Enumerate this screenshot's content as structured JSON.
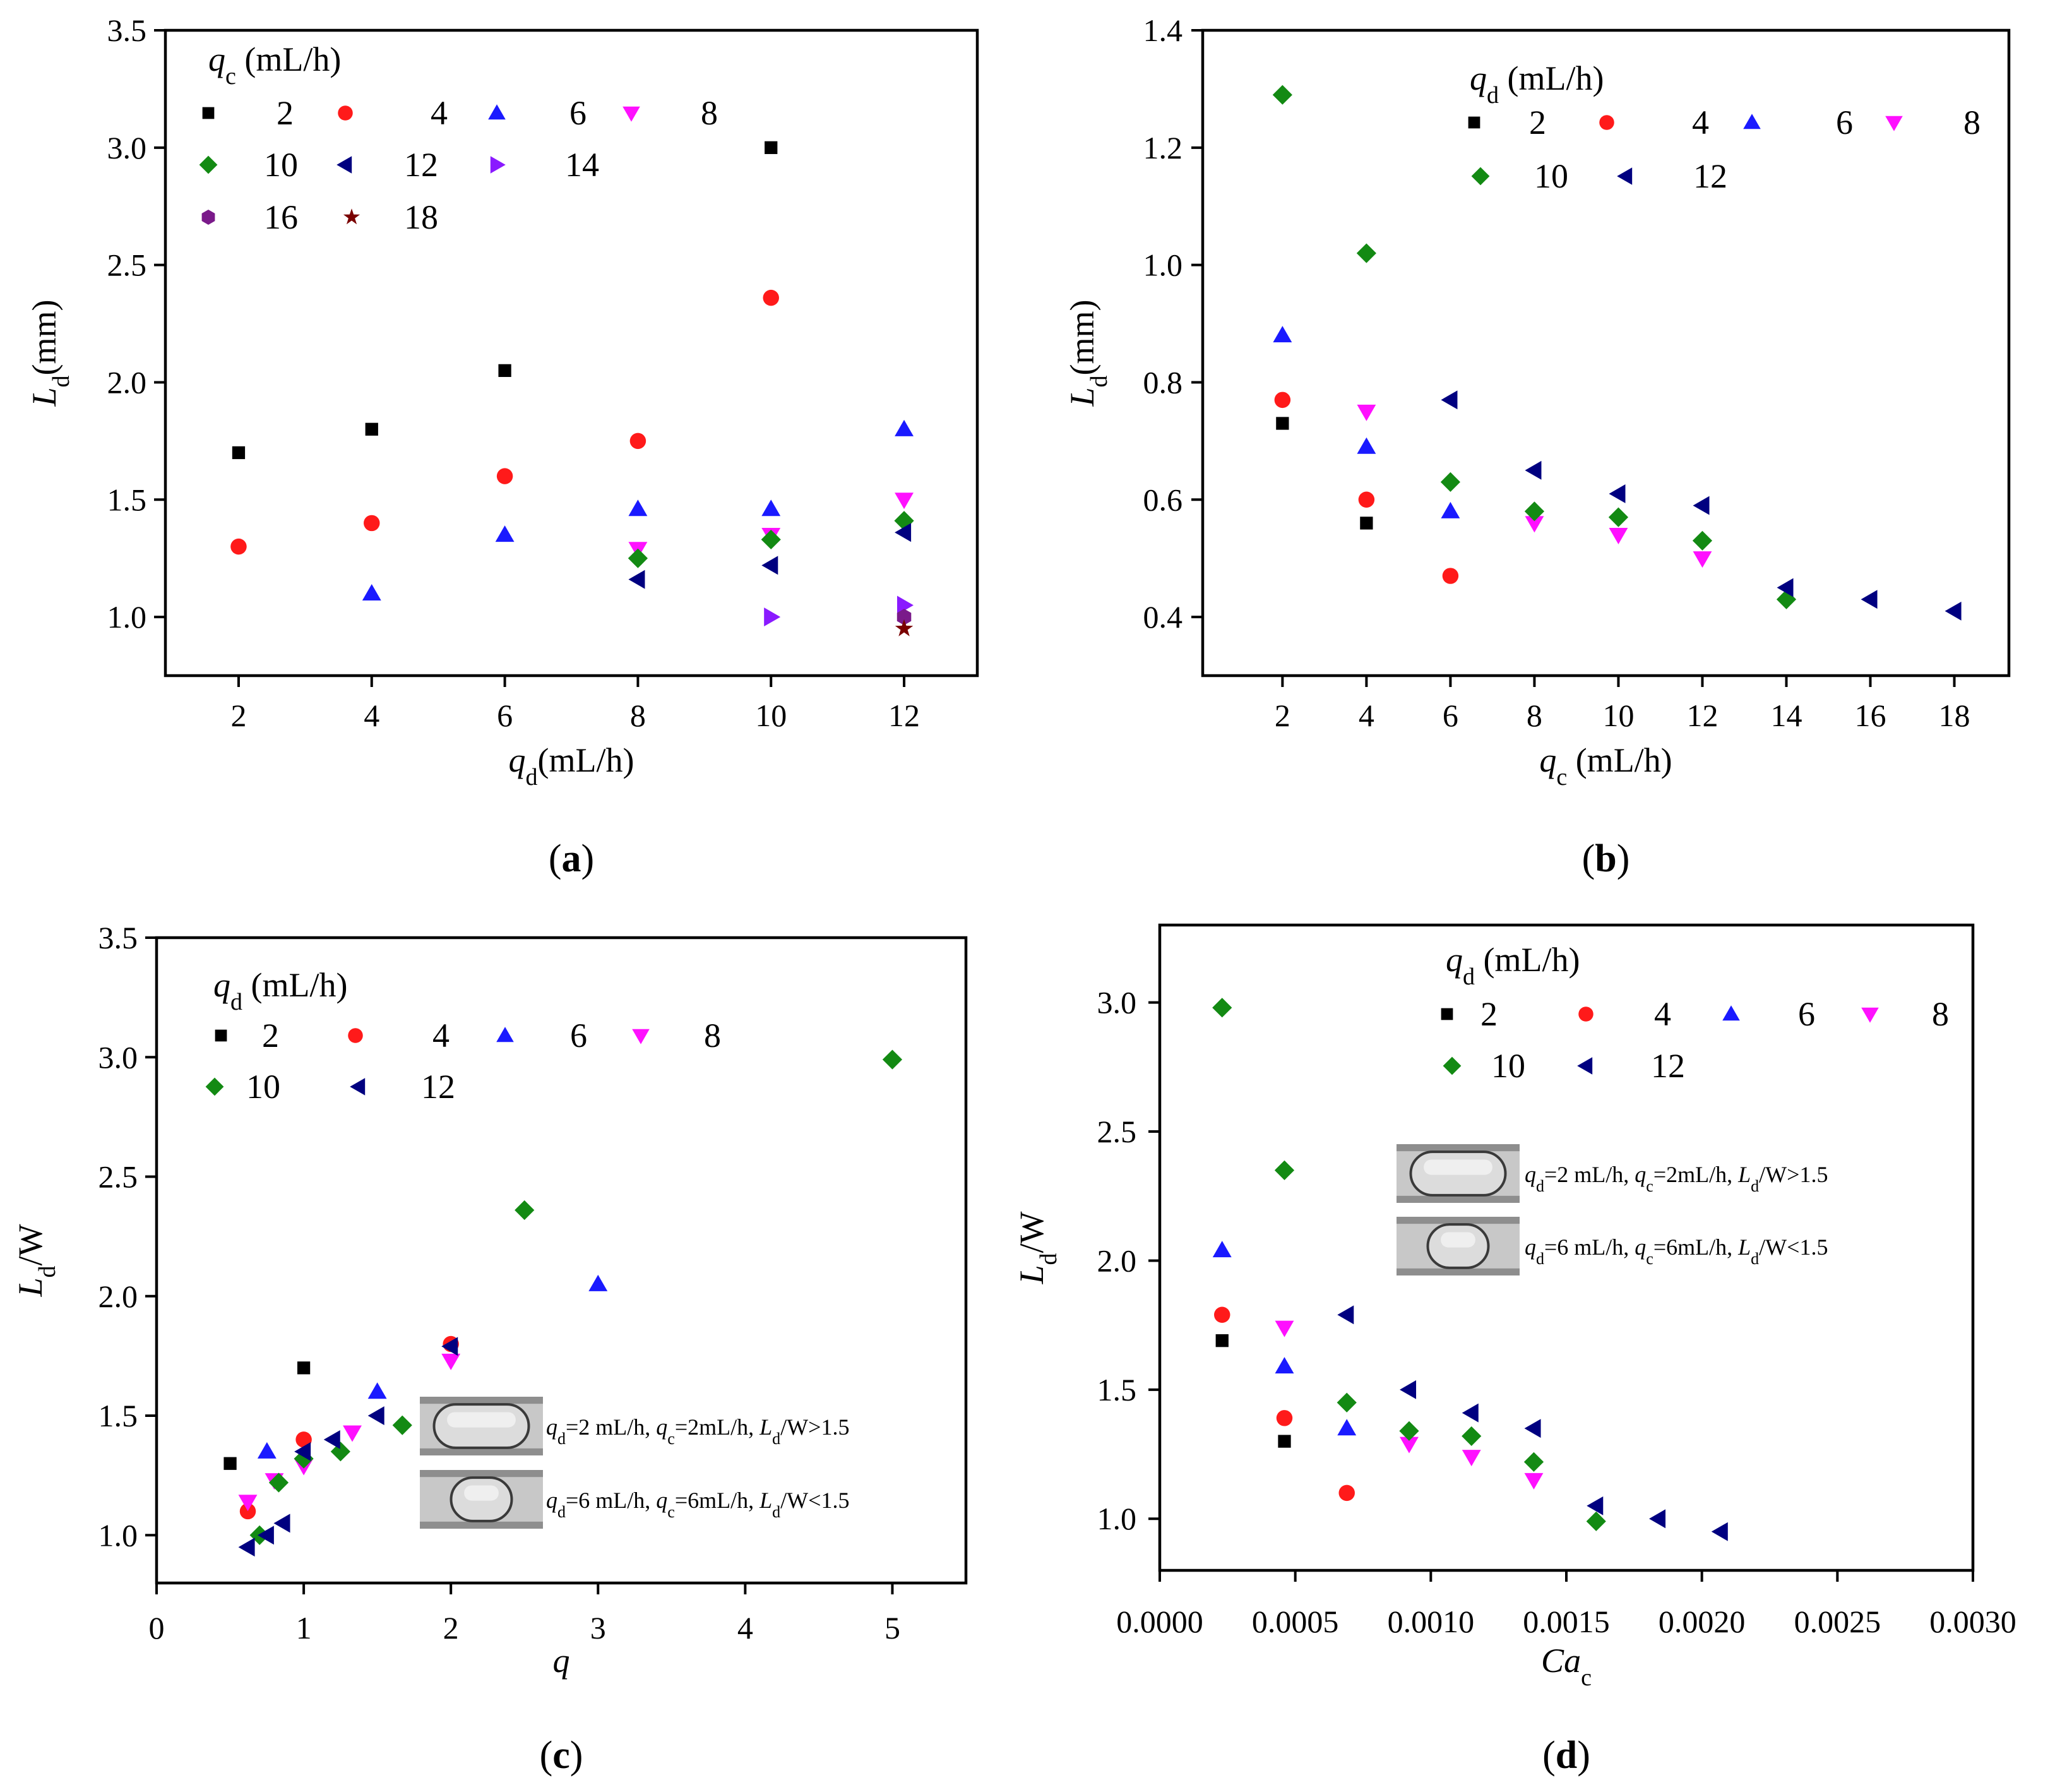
{
  "colors": {
    "2": "#000000",
    "4": "#ff1a1a",
    "6": "#1a1aff",
    "8": "#ff10ff",
    "10": "#138a13",
    "12": "#000080",
    "14": "#8a1aff",
    "16": "#7a1a8a",
    "18": "#7a0000"
  },
  "marker_shapes": {
    "2": "square",
    "4": "circle",
    "6": "triangle-up",
    "8": "triangle-down",
    "10": "diamond",
    "12": "triangle-left",
    "14": "triangle-right",
    "16": "hexagon",
    "18": "star"
  },
  "inset_lines": [
    {
      "q_d": "=2 mL/h, ",
      "q_c": "=2mL/h, ",
      "L": "/W>1.5"
    },
    {
      "q_d": "=6 mL/h, ",
      "q_c": "=6mL/h, ",
      "L": "/W<1.5"
    }
  ],
  "chart_data": [
    {
      "panel_label": "(a)",
      "type": "scatter",
      "xlabel": "q_d(mL/h)",
      "ylabel": "L_d(mm)",
      "xlim": [
        0.9,
        13.1
      ],
      "ylim": [
        0.75,
        3.5
      ],
      "xticks": [
        2,
        4,
        6,
        8,
        10,
        12
      ],
      "yticks": [
        1.0,
        1.5,
        2.0,
        2.5,
        3.0,
        3.5
      ],
      "ytick_labels": [
        "1.0",
        "1.5",
        "2.0",
        "2.5",
        "3.0",
        "3.5"
      ],
      "legend_title": "q_c (mL/h)",
      "series": [
        {
          "name": "2",
          "points": [
            [
              2,
              1.7
            ],
            [
              4,
              1.8
            ],
            [
              6,
              2.05
            ],
            [
              10,
              3.0
            ]
          ]
        },
        {
          "name": "4",
          "points": [
            [
              2,
              1.3
            ],
            [
              4,
              1.4
            ],
            [
              6,
              1.6
            ],
            [
              8,
              1.75
            ],
            [
              10,
              2.36
            ]
          ]
        },
        {
          "name": "6",
          "points": [
            [
              4,
              1.1
            ],
            [
              6,
              1.35
            ],
            [
              8,
              1.46
            ],
            [
              10,
              1.46
            ],
            [
              12,
              1.8
            ]
          ]
        },
        {
          "name": "8",
          "points": [
            [
              8,
              1.29
            ],
            [
              10,
              1.35
            ],
            [
              12,
              1.5
            ]
          ]
        },
        {
          "name": "10",
          "points": [
            [
              8,
              1.25
            ],
            [
              10,
              1.33
            ],
            [
              12,
              1.41
            ]
          ]
        },
        {
          "name": "12",
          "points": [
            [
              8,
              1.16
            ],
            [
              10,
              1.22
            ],
            [
              12,
              1.36
            ]
          ]
        },
        {
          "name": "14",
          "points": [
            [
              10,
              1.0
            ],
            [
              12,
              1.05
            ]
          ]
        },
        {
          "name": "16",
          "points": [
            [
              12,
              1.0
            ]
          ]
        },
        {
          "name": "18",
          "points": [
            [
              12,
              0.95
            ]
          ]
        }
      ]
    },
    {
      "panel_label": "(b)",
      "type": "scatter",
      "xlabel": "q_c (mL/h)",
      "ylabel": "L_d(mm)",
      "xlim": [
        0.1,
        19.3
      ],
      "ylim": [
        0.3,
        1.4
      ],
      "xticks": [
        2,
        4,
        6,
        8,
        10,
        12,
        14,
        16,
        18
      ],
      "yticks": [
        0.4,
        0.6,
        0.8,
        1.0,
        1.2,
        1.4
      ],
      "ytick_labels": [
        "0.4",
        "0.6",
        "0.8",
        "1.0",
        "1.2",
        "1.4"
      ],
      "legend_title": "q_d (mL/h)",
      "series": [
        {
          "name": "2",
          "points": [
            [
              2,
              0.73
            ],
            [
              4,
              0.56
            ]
          ]
        },
        {
          "name": "4",
          "points": [
            [
              2,
              0.77
            ],
            [
              4,
              0.6
            ],
            [
              6,
              0.47
            ]
          ]
        },
        {
          "name": "6",
          "points": [
            [
              2,
              0.88
            ],
            [
              4,
              0.69
            ],
            [
              6,
              0.58
            ]
          ]
        },
        {
          "name": "8",
          "points": [
            [
              4,
              0.75
            ],
            [
              8,
              0.56
            ],
            [
              10,
              0.54
            ],
            [
              12,
              0.5
            ]
          ]
        },
        {
          "name": "10",
          "points": [
            [
              2,
              1.29
            ],
            [
              4,
              1.02
            ],
            [
              6,
              0.63
            ],
            [
              8,
              0.58
            ],
            [
              10,
              0.57
            ],
            [
              12,
              0.53
            ],
            [
              14,
              0.43
            ]
          ]
        },
        {
          "name": "12",
          "points": [
            [
              6,
              0.77
            ],
            [
              8,
              0.65
            ],
            [
              10,
              0.61
            ],
            [
              12,
              0.59
            ],
            [
              14,
              0.45
            ],
            [
              16,
              0.43
            ],
            [
              18,
              0.41
            ]
          ]
        }
      ]
    },
    {
      "panel_label": "(c)",
      "type": "scatter",
      "xlabel": "q",
      "ylabel": "L_d/W",
      "xlim": [
        0,
        5.5
      ],
      "ylim": [
        0.8,
        3.5
      ],
      "xticks": [
        0,
        1,
        2,
        3,
        4,
        5
      ],
      "yticks": [
        1.0,
        1.5,
        2.0,
        2.5,
        3.0,
        3.5
      ],
      "ytick_labels": [
        "1.0",
        "1.5",
        "2.0",
        "2.5",
        "3.0",
        "3.5"
      ],
      "legend_title": "q_d (mL/h)",
      "series": [
        {
          "name": "2",
          "points": [
            [
              0.5,
              1.3
            ],
            [
              1.0,
              1.7
            ]
          ]
        },
        {
          "name": "4",
          "points": [
            [
              0.62,
              1.1
            ],
            [
              1.0,
              1.4
            ],
            [
              2.0,
              1.8
            ]
          ]
        },
        {
          "name": "6",
          "points": [
            [
              0.75,
              1.35
            ],
            [
              1.5,
              1.6
            ],
            [
              3.0,
              2.05
            ]
          ]
        },
        {
          "name": "8",
          "points": [
            [
              0.62,
              1.14
            ],
            [
              0.8,
              1.23
            ],
            [
              1.0,
              1.29
            ],
            [
              1.33,
              1.43
            ],
            [
              2.0,
              1.73
            ]
          ]
        },
        {
          "name": "10",
          "points": [
            [
              0.7,
              1.0
            ],
            [
              0.83,
              1.22
            ],
            [
              1.0,
              1.32
            ],
            [
              1.25,
              1.35
            ],
            [
              1.67,
              1.46
            ],
            [
              2.5,
              2.36
            ],
            [
              5.0,
              2.99
            ]
          ]
        },
        {
          "name": "12",
          "points": [
            [
              0.62,
              0.95
            ],
            [
              0.75,
              1.0
            ],
            [
              0.86,
              1.05
            ],
            [
              1.0,
              1.35
            ],
            [
              1.2,
              1.4
            ],
            [
              1.5,
              1.5
            ],
            [
              2.0,
              1.79
            ]
          ]
        }
      ]
    },
    {
      "panel_label": "(d)",
      "type": "scatter",
      "xlabel": "Ca_c",
      "ylabel": "L_d/W",
      "xlim": [
        0,
        0.003
      ],
      "ylim": [
        0.8,
        3.3
      ],
      "xticks": [
        0,
        0.0005,
        0.001,
        0.0015,
        0.002,
        0.0025,
        0.003
      ],
      "xtick_labels": [
        "0.0000",
        "0.0005",
        "0.0010",
        "0.0015",
        "0.0020",
        "0.0025",
        "0.0030"
      ],
      "yticks": [
        1.0,
        1.5,
        2.0,
        2.5,
        3.0
      ],
      "ytick_labels": [
        "1.0",
        "1.5",
        "2.0",
        "2.5",
        "3.0"
      ],
      "legend_title": "q_d (mL/h)",
      "series": [
        {
          "name": "2",
          "points": [
            [
              0.00023,
              1.69
            ],
            [
              0.00046,
              1.3
            ]
          ]
        },
        {
          "name": "4",
          "points": [
            [
              0.00023,
              1.79
            ],
            [
              0.00046,
              1.39
            ],
            [
              0.00069,
              1.1
            ]
          ]
        },
        {
          "name": "6",
          "points": [
            [
              0.00023,
              2.04
            ],
            [
              0.00046,
              1.59
            ],
            [
              0.00069,
              1.35
            ]
          ]
        },
        {
          "name": "8",
          "points": [
            [
              0.00046,
              1.74
            ],
            [
              0.00092,
              1.29
            ],
            [
              0.00115,
              1.24
            ],
            [
              0.00138,
              1.15
            ]
          ]
        },
        {
          "name": "10",
          "points": [
            [
              0.00023,
              2.98
            ],
            [
              0.00046,
              2.35
            ],
            [
              0.00069,
              1.45
            ],
            [
              0.00092,
              1.34
            ],
            [
              0.00115,
              1.32
            ],
            [
              0.00138,
              1.22
            ],
            [
              0.00161,
              0.99
            ]
          ]
        },
        {
          "name": "12",
          "points": [
            [
              0.00069,
              1.79
            ],
            [
              0.00092,
              1.5
            ],
            [
              0.00115,
              1.41
            ],
            [
              0.00138,
              1.35
            ],
            [
              0.00161,
              1.05
            ],
            [
              0.00184,
              1.0
            ],
            [
              0.00207,
              0.95
            ]
          ]
        }
      ]
    }
  ]
}
